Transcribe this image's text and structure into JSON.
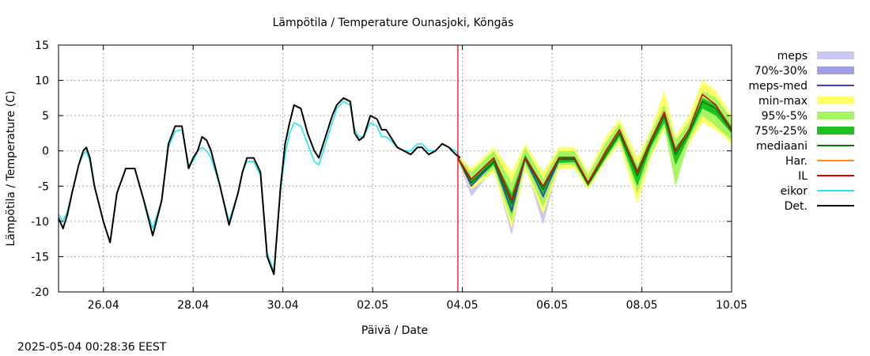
{
  "chart_data": {
    "type": "line",
    "title": "Lämpötila / Temperature   Ounasjoki, Köngäs",
    "xlabel": "Päivä / Date",
    "ylabel": "Lämpötila / Temperature (C)",
    "timestamp": "2025-05-04 00:28:36 EEST",
    "xlim": [
      0,
      15
    ],
    "ylim": [
      -20,
      15
    ],
    "yticks": [
      15,
      10,
      5,
      0,
      -5,
      -10,
      -15,
      -20
    ],
    "xticks": [
      {
        "x": 1,
        "label": "26.04"
      },
      {
        "x": 3,
        "label": "28.04"
      },
      {
        "x": 5,
        "label": "30.04"
      },
      {
        "x": 7,
        "label": "02.05"
      },
      {
        "x": 9,
        "label": "04.05"
      },
      {
        "x": 11,
        "label": "06.05"
      },
      {
        "x": 13,
        "label": "08.05"
      },
      {
        "x": 15,
        "label": "10.05"
      }
    ],
    "grid": true,
    "forecast_start_x": 8.9,
    "legend_position": "right",
    "legend": [
      {
        "name": "meps",
        "color": "#c8c8f5",
        "style": "band"
      },
      {
        "name": "70%-30%",
        "color": "#9e9ee0",
        "style": "band"
      },
      {
        "name": "meps-med",
        "color": "#3b3bd4",
        "style": "line"
      },
      {
        "name": "min-max",
        "color": "#ffff66",
        "style": "band"
      },
      {
        "name": "95%-5%",
        "color": "#a6f562",
        "style": "band"
      },
      {
        "name": "75%-25%",
        "color": "#1ec21e",
        "style": "band"
      },
      {
        "name": "mediaani",
        "color": "#007a00",
        "style": "line"
      },
      {
        "name": "Har.",
        "color": "#ff8c1a",
        "style": "line"
      },
      {
        "name": "IL",
        "color": "#e00000",
        "style": "line"
      },
      {
        "name": "eikor",
        "color": "#22e8e8",
        "style": "line"
      },
      {
        "name": "Det.",
        "color": "#000000",
        "style": "line"
      }
    ],
    "series": [
      {
        "name": "Det.",
        "color": "#000000",
        "x": [
          0,
          0.1,
          0.2,
          0.3,
          0.45,
          0.55,
          0.62,
          0.7,
          0.8,
          1.0,
          1.15,
          1.3,
          1.5,
          1.7,
          1.9,
          2.1,
          2.3,
          2.45,
          2.6,
          2.75,
          2.9,
          3.0,
          3.1,
          3.2,
          3.3,
          3.4,
          3.6,
          3.8,
          4.0,
          4.1,
          4.2,
          4.35,
          4.5,
          4.65,
          4.8,
          4.95,
          5.05,
          5.15,
          5.25,
          5.4,
          5.55,
          5.7,
          5.8,
          5.95,
          6.1,
          6.2,
          6.35,
          6.5,
          6.6,
          6.7,
          6.8,
          6.95,
          7.1,
          7.2,
          7.3,
          7.4,
          7.55,
          7.7,
          7.85,
          8.0,
          8.1,
          8.25,
          8.4,
          8.55,
          8.7,
          8.85,
          8.95
        ],
        "y": [
          -9.5,
          -11,
          -9,
          -6,
          -2,
          0,
          0.5,
          -1,
          -5,
          -10,
          -13,
          -6,
          -2.5,
          -2.5,
          -7,
          -12,
          -7,
          1,
          3.5,
          3.5,
          -2.5,
          -1,
          0,
          2,
          1.5,
          0,
          -5,
          -10.5,
          -6,
          -3,
          -1,
          -1,
          -3,
          -15,
          -17.5,
          -5,
          1,
          4,
          6.5,
          6,
          2.5,
          0,
          -1,
          2,
          5,
          6.5,
          7.5,
          7,
          2.5,
          1.5,
          2,
          5,
          4.5,
          3,
          3,
          2,
          0.5,
          0,
          -0.5,
          0.5,
          0.5,
          -0.5,
          0,
          1,
          0.5,
          -0.5,
          -1
        ]
      },
      {
        "name": "eikor",
        "color": "#22e8e8",
        "x": [
          0,
          0.1,
          0.2,
          0.3,
          0.45,
          0.55,
          0.62,
          0.7,
          0.8,
          1.0,
          1.15,
          1.3,
          1.5,
          1.7,
          1.9,
          2.1,
          2.3,
          2.45,
          2.6,
          2.75,
          2.9,
          3.0,
          3.1,
          3.2,
          3.3,
          3.4,
          3.6,
          3.8,
          4.0,
          4.1,
          4.2,
          4.35,
          4.5,
          4.65,
          4.8,
          4.95,
          5.05,
          5.15,
          5.25,
          5.4,
          5.55,
          5.7,
          5.8,
          5.95,
          6.1,
          6.2,
          6.35,
          6.5,
          6.6,
          6.7,
          6.8,
          6.95,
          7.1,
          7.2,
          7.3,
          7.4,
          7.55,
          7.7,
          7.85,
          8.0,
          8.1,
          8.25,
          8.4,
          8.55,
          8.7,
          8.85,
          8.95
        ],
        "y": [
          -9,
          -10,
          -8.5,
          -6,
          -2,
          -0.5,
          0,
          -1.5,
          -5,
          -10,
          -13,
          -6,
          -2.5,
          -2.5,
          -7,
          -11,
          -7,
          0.5,
          2.8,
          3,
          -2,
          -1.5,
          0,
          0.5,
          0,
          -1,
          -5,
          -10,
          -6,
          -3,
          -1.5,
          -1.5,
          -3.5,
          -14.5,
          -17,
          -5.5,
          -0.5,
          2.5,
          4,
          3.5,
          1,
          -1.5,
          -2,
          1,
          4,
          6,
          7,
          6.5,
          3,
          2,
          2,
          4,
          3.5,
          2,
          2,
          1.5,
          0.5,
          0,
          0,
          1,
          1,
          0,
          0,
          1,
          0.5,
          0,
          -1
        ]
      },
      {
        "name": "IL",
        "color": "#e00000",
        "x": [
          8.9,
          9.2,
          9.7,
          10.1,
          10.4,
          10.8,
          11.15,
          11.5,
          11.8,
          12.2,
          12.5,
          12.9,
          13.2,
          13.5,
          13.75,
          14.05,
          14.35,
          14.65,
          15
        ],
        "y": [
          -1,
          -4,
          -1,
          -7,
          -1,
          -5,
          -1,
          -1,
          -4.5,
          0,
          3,
          -3,
          1.5,
          5.5,
          0,
          3,
          8,
          6.5,
          3
        ]
      },
      {
        "name": "mediaani",
        "color": "#007a00",
        "x": [
          8.9,
          9.2,
          9.7,
          10.1,
          10.4,
          10.8,
          11.15,
          11.5,
          11.8,
          12.2,
          12.5,
          12.9,
          13.2,
          13.5,
          13.75,
          14.05,
          14.35,
          14.65,
          15
        ],
        "y": [
          -1,
          -4.5,
          -1.5,
          -7.5,
          -1,
          -5.5,
          -1.2,
          -1.2,
          -4.8,
          -0.5,
          2.5,
          -3.5,
          1,
          5,
          -0.5,
          2.5,
          7,
          6,
          2.8
        ]
      },
      {
        "name": "meps-med",
        "color": "#3b3bd4",
        "x": [
          8.9,
          9.2,
          9.7,
          10.1,
          10.4,
          10.8,
          11.15,
          11.5
        ],
        "y": [
          -1,
          -5,
          -1.5,
          -8.5,
          -1,
          -6.5,
          -1.2,
          -1.2
        ]
      }
    ],
    "bands": [
      {
        "name": "meps",
        "color": "#c8c8f5",
        "x": [
          8.9,
          9.2,
          9.7,
          10.1,
          10.4,
          10.8,
          11.15,
          11.5
        ],
        "lower": [
          -1.2,
          -6.5,
          -2.5,
          -12,
          -2,
          -10.5,
          -2,
          -1.5
        ],
        "upper": [
          -0.8,
          -3.5,
          -0.8,
          -6,
          -0.2,
          -4.5,
          -0.5,
          -0.8
        ]
      },
      {
        "name": "70%-30%",
        "color": "#9e9ee0",
        "x": [
          8.9,
          9.2,
          9.7,
          10.1,
          10.4,
          10.8,
          11.15,
          11.5
        ],
        "lower": [
          -1.1,
          -5.5,
          -1.8,
          -9.5,
          -1.5,
          -7.5,
          -1.5,
          -1.3
        ],
        "upper": [
          -0.9,
          -4.5,
          -1.2,
          -7.5,
          -0.6,
          -5.5,
          -0.9,
          -1
        ]
      },
      {
        "name": "min-max",
        "color": "#ffff66",
        "x": [
          8.9,
          9.2,
          9.7,
          10.1,
          10.4,
          10.8,
          11.15,
          11.5,
          11.8,
          12.2,
          12.5,
          12.9,
          13.2,
          13.5,
          13.75,
          14.05,
          14.35,
          14.65,
          15
        ],
        "lower": [
          -1.5,
          -5.5,
          -3,
          -11,
          -2.5,
          -9,
          -2.5,
          -2.5,
          -5.5,
          -1.5,
          1,
          -7.5,
          -1,
          3,
          -3,
          1,
          4,
          3,
          1
        ],
        "upper": [
          -0.5,
          -2.5,
          0.5,
          -3,
          1,
          -3,
          0.5,
          0.5,
          -3,
          2,
          4.5,
          -1,
          3,
          8.5,
          2,
          5,
          10,
          8.5,
          5
        ]
      },
      {
        "name": "95%-5%",
        "color": "#a6f562",
        "x": [
          8.9,
          9.2,
          9.7,
          10.1,
          10.4,
          10.8,
          11.15,
          11.5,
          11.8,
          12.2,
          12.5,
          12.9,
          13.2,
          13.5,
          13.75,
          14.05,
          14.35,
          14.65,
          15
        ],
        "lower": [
          -1.3,
          -5,
          -2.5,
          -10,
          -2,
          -8,
          -2,
          -2,
          -5.2,
          -1,
          1.5,
          -6,
          -0.5,
          3.5,
          -5,
          1.5,
          5,
          3.5,
          1.5
        ],
        "upper": [
          -0.7,
          -3,
          0,
          -4.5,
          0.5,
          -4,
          0,
          0,
          -3.5,
          1.2,
          3.8,
          -2,
          2.5,
          6.5,
          1.5,
          4,
          8.5,
          7.5,
          4.5
        ]
      },
      {
        "name": "75%-25%",
        "color": "#1ec21e",
        "x": [
          8.9,
          9.2,
          9.7,
          10.1,
          10.4,
          10.8,
          11.15,
          11.5,
          11.8,
          12.2,
          12.5,
          12.9,
          13.2,
          13.5,
          13.75,
          14.05,
          14.35,
          14.65,
          15
        ],
        "lower": [
          -1.1,
          -4.8,
          -2,
          -9,
          -1.5,
          -6.5,
          -1.7,
          -1.6,
          -5,
          -1,
          2,
          -5,
          0.5,
          4,
          -2,
          2,
          6,
          5,
          2.5
        ],
        "upper": [
          -0.9,
          -4,
          -1,
          -6,
          -0.5,
          -5,
          -0.8,
          -0.8,
          -4.3,
          0,
          3,
          -2.5,
          1.8,
          5.5,
          0.5,
          3,
          7.5,
          6.5,
          3.5
        ]
      }
    ]
  }
}
